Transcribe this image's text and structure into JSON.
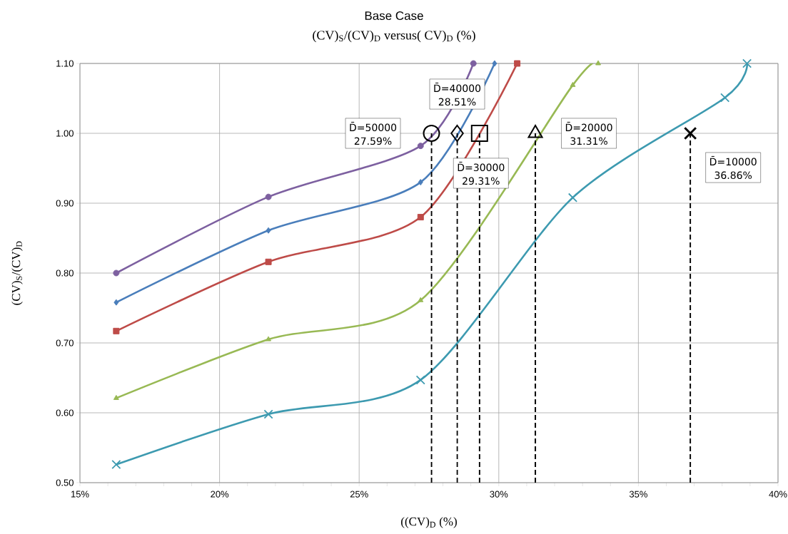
{
  "chart_data": {
    "type": "line",
    "title": "Base Case",
    "subtitle": "(CV)$_{S}$/(CV)$_{D}$ versus( CV)$_{D}$ (%)",
    "xlabel": "((CV)$_{D}$ (%)",
    "ylabel": "(CV)$_{S}$/(CV)$_{D}$",
    "xlim": [
      15,
      40
    ],
    "ylim": [
      0.5,
      1.1
    ],
    "xticks": [
      {
        "value": 15,
        "label": "15%"
      },
      {
        "value": 20,
        "label": "20%"
      },
      {
        "value": 25,
        "label": "25%"
      },
      {
        "value": 30,
        "label": "30%"
      },
      {
        "value": 35,
        "label": "35%"
      },
      {
        "value": 40,
        "label": "40%"
      }
    ],
    "yticks": [
      {
        "value": 0.5,
        "label": "0.50"
      },
      {
        "value": 0.6,
        "label": "0.60"
      },
      {
        "value": 0.7,
        "label": "0.70"
      },
      {
        "value": 0.8,
        "label": "0.80"
      },
      {
        "value": 0.9,
        "label": "0.90"
      },
      {
        "value": 1.0,
        "label": "1.00"
      },
      {
        "value": 1.1,
        "label": "1.10"
      }
    ],
    "grid": true,
    "series": [
      {
        "color": "#7d60a0",
        "marker": "circle",
        "x": [
          16.3,
          21.75,
          27.2,
          29.09
        ],
        "values": [
          0.8,
          0.909,
          0.982,
          1.1
        ]
      },
      {
        "color": "#4a7ebb",
        "marker": "diamond",
        "x": [
          16.3,
          21.75,
          27.2,
          29.85
        ],
        "values": [
          0.758,
          0.861,
          0.93,
          1.1
        ]
      },
      {
        "color": "#be4b48",
        "marker": "square",
        "x": [
          16.3,
          21.75,
          27.2,
          30.66
        ],
        "values": [
          0.717,
          0.816,
          0.88,
          1.1
        ]
      },
      {
        "color": "#98b954",
        "marker": "triangle",
        "x": [
          16.3,
          21.75,
          27.2,
          32.65,
          33.56
        ],
        "values": [
          0.621,
          0.705,
          0.761,
          1.069,
          1.1
        ]
      },
      {
        "color": "#3d9ab0",
        "marker": "cross",
        "x": [
          16.3,
          21.75,
          27.2,
          32.65,
          38.1,
          38.89
        ],
        "values": [
          0.526,
          0.598,
          0.647,
          0.908,
          1.051,
          1.1
        ]
      },
      {
        "type": "line",
        "color": "#000000",
        "marker": "none",
        "line_style": "dashed",
        "x": [
          27.59,
          27.59
        ],
        "values": [
          0.5,
          1.0
        ]
      },
      {
        "type": "line",
        "color": "#000000",
        "marker": "none",
        "line_style": "dashed",
        "x": [
          28.51,
          28.51
        ],
        "values": [
          0.5,
          1.0
        ]
      },
      {
        "type": "line",
        "color": "#000000",
        "marker": "none",
        "line_style": "dashed",
        "x": [
          29.31,
          29.31
        ],
        "values": [
          0.5,
          1.0
        ]
      },
      {
        "type": "line",
        "color": "#000000",
        "marker": "none",
        "line_style": "dashed",
        "x": [
          31.31,
          31.31
        ],
        "values": [
          0.5,
          1.0
        ]
      },
      {
        "type": "line",
        "color": "#000000",
        "marker": "none",
        "line_style": "dashed",
        "x": [
          36.86,
          36.86
        ],
        "values": [
          0.5,
          1.0
        ]
      },
      {
        "type": "scatter",
        "color": "#000000",
        "marker": "circle",
        "x": [
          27.59
        ],
        "values": [
          1.0
        ]
      },
      {
        "type": "scatter",
        "color": "#000000",
        "marker": "diamond",
        "x": [
          28.51
        ],
        "values": [
          1.0
        ]
      },
      {
        "type": "scatter",
        "color": "#000000",
        "marker": "square",
        "x": [
          29.31
        ],
        "values": [
          1.0
        ]
      },
      {
        "type": "scatter",
        "color": "#000000",
        "marker": "triangle",
        "x": [
          31.31
        ],
        "values": [
          1.0
        ]
      },
      {
        "type": "scatter",
        "color": "#000000",
        "marker": "cross",
        "x": [
          36.86
        ],
        "values": [
          1.0
        ]
      }
    ],
    "annotations": [
      "D̄=50000",
      "27.59%",
      "D̄=40000",
      "28.51%",
      "D̄=30000",
      "29.31%",
      "D̄=20000",
      "31.31%",
      "D̄=10000",
      "36.86%"
    ]
  }
}
